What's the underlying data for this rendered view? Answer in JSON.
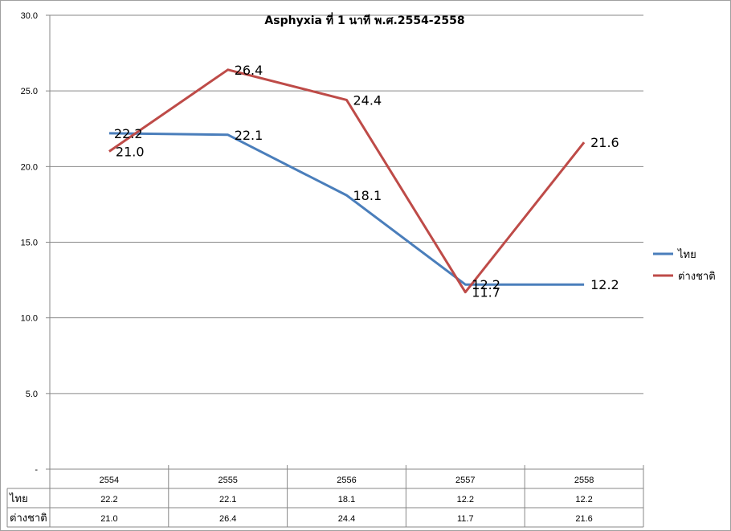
{
  "chart_data": {
    "type": "line",
    "title": "Asphyxia ที่ 1 นาที พ.ศ.2554-2558",
    "categories": [
      "2554",
      "2555",
      "2556",
      "2557",
      "2558"
    ],
    "ylim": [
      0,
      30
    ],
    "y_ticks": [
      "-",
      "5.0",
      "10.0",
      "15.0",
      "20.0",
      "25.0",
      "30.0"
    ],
    "grid": true,
    "legend_position": "right",
    "data_table": true,
    "series": [
      {
        "name": "ไทย",
        "color": "#4a7ebb",
        "values": [
          22.2,
          22.1,
          18.1,
          12.2,
          12.2
        ],
        "labels": [
          "22.2",
          "22.1",
          "18.1",
          "12.2",
          "12.2"
        ]
      },
      {
        "name": "ต่างชาติ",
        "color": "#be4b48",
        "values": [
          21.0,
          26.4,
          24.4,
          11.7,
          21.6
        ],
        "labels": [
          "21.0",
          "26.4",
          "24.4",
          "11.7",
          "21.6"
        ]
      }
    ]
  }
}
